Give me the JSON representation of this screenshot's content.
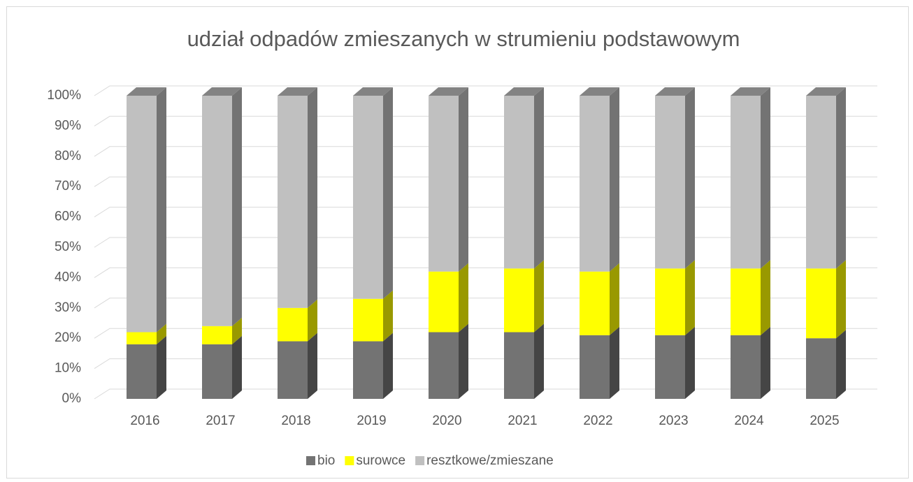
{
  "chart_data": {
    "type": "bar3d_stacked",
    "title": "udział odpadów zmieszanych w strumieniu podstawowym",
    "categories": [
      "2016",
      "2017",
      "2018",
      "2019",
      "2020",
      "2021",
      "2022",
      "2023",
      "2024",
      "2025"
    ],
    "series": [
      {
        "name": "bio",
        "color": "#737373",
        "values": [
          18,
          18,
          19,
          19,
          22,
          22,
          21,
          21,
          21,
          20
        ]
      },
      {
        "name": "surowce",
        "color": "#ffff00",
        "values": [
          4,
          6,
          11,
          14,
          20,
          21,
          21,
          22,
          22,
          23
        ]
      },
      {
        "name": "resztkowe/zmieszane",
        "color": "#c0c0c0",
        "values": [
          78,
          76,
          70,
          67,
          58,
          57,
          58,
          57,
          57,
          57
        ]
      }
    ],
    "ylim": [
      0,
      100
    ],
    "yticks": [
      {
        "value": 0,
        "label": "0%"
      },
      {
        "value": 10,
        "label": "10%"
      },
      {
        "value": 20,
        "label": "20%"
      },
      {
        "value": 30,
        "label": "30%"
      },
      {
        "value": 40,
        "label": "40%"
      },
      {
        "value": 50,
        "label": "50%"
      },
      {
        "value": 60,
        "label": "60%"
      },
      {
        "value": 70,
        "label": "70%"
      },
      {
        "value": 80,
        "label": "80%"
      },
      {
        "value": 90,
        "label": "90%"
      },
      {
        "value": 100,
        "label": "100%"
      }
    ],
    "grid": true,
    "legend": "bottom"
  }
}
